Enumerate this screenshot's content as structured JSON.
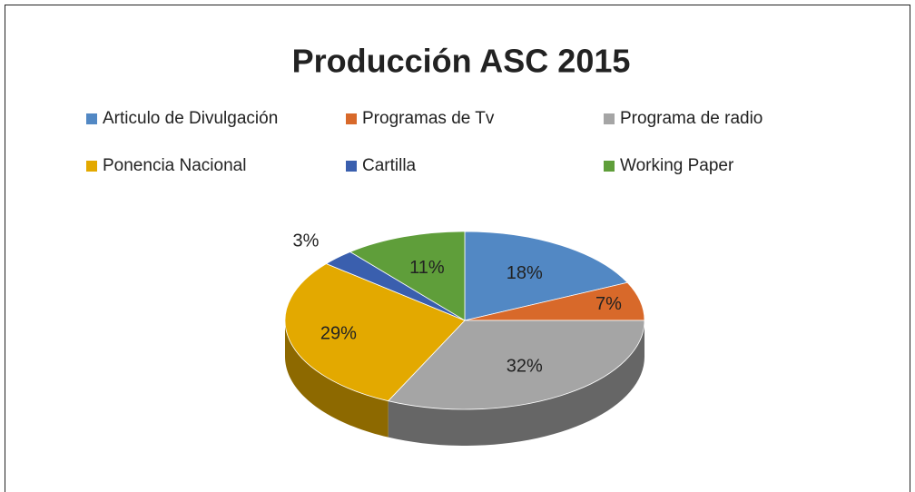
{
  "chart_data": {
    "type": "pie",
    "title": "Producción ASC 2015",
    "categories": [
      "Articulo de Divulgación",
      "Programas de Tv",
      "Programa de radio",
      "Ponencia Nacional",
      "Cartilla",
      "Working Paper"
    ],
    "values": [
      18,
      7,
      32,
      29,
      3,
      11
    ],
    "value_labels": [
      "18%",
      "7%",
      "32%",
      "29%",
      "3%",
      "11%"
    ],
    "colors": [
      "#5288c4",
      "#d8692a",
      "#a5a5a5",
      "#e3a900",
      "#3a5fae",
      "#5f9e3a"
    ],
    "legend": "top"
  }
}
